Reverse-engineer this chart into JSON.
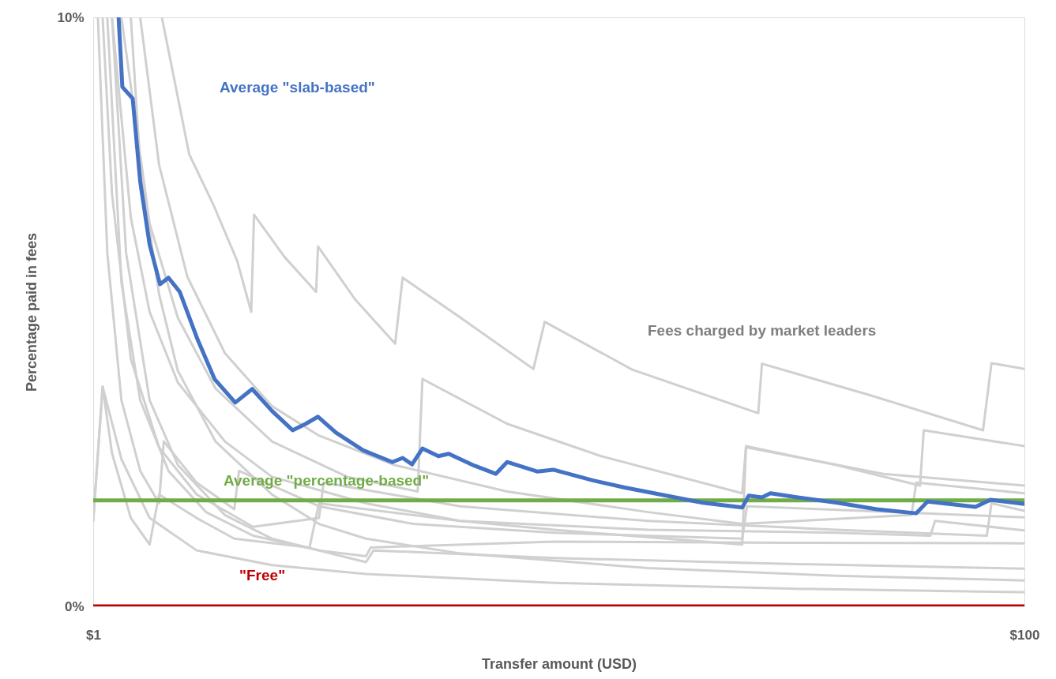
{
  "chart_data": {
    "type": "line",
    "xlabel": "Transfer amount (USD)",
    "ylabel": "Percentage paid in fees",
    "xlim": [
      1,
      100
    ],
    "xticks": [
      {
        "value": 1,
        "label": "$1"
      },
      {
        "value": 100,
        "label": "$100"
      }
    ],
    "ylim": [
      0,
      10
    ],
    "yticks": [
      {
        "value": 0,
        "label": "0%"
      },
      {
        "value": 10,
        "label": "10%"
      }
    ],
    "grid": false,
    "legend": false,
    "marker": "none",
    "line_style": "solid",
    "annotations": [
      "Fees charged by market leaders"
    ],
    "series": [
      {
        "color": "#d0d0d0",
        "x": [
          8.3,
          11.2,
          13.8,
          16.3,
          17.8,
          18.1,
          21.3,
          24.7,
          24.9,
          28.9,
          33.1,
          33.9,
          39.8,
          47.8,
          49.0,
          58.3,
          71.7,
          72.1,
          83.5,
          95.6,
          96.5,
          100
        ],
        "values": [
          10,
          7.68,
          6.81,
          5.87,
          5.0,
          6.65,
          5.94,
          5.34,
          6.11,
          5.2,
          4.46,
          5.58,
          4.93,
          4.03,
          4.83,
          4.02,
          3.28,
          4.12,
          3.59,
          2.99,
          4.13,
          4.03
        ]
      },
      {
        "color": "#d0d0d0",
        "x": [
          4,
          7,
          10,
          14,
          20,
          28,
          35.5,
          36,
          45,
          55,
          70,
          70.4,
          80,
          88.9,
          89.3,
          100
        ],
        "values": [
          10,
          6.5,
          4.9,
          3.7,
          2.8,
          2.2,
          1.95,
          3.86,
          3.1,
          2.55,
          1.92,
          2.72,
          2.4,
          2.05,
          2.99,
          2.72
        ]
      },
      {
        "color": "#d0d0d0",
        "x": [
          3,
          5,
          7,
          10,
          15,
          20,
          30,
          40,
          50,
          70,
          70.4,
          85,
          100
        ],
        "values": [
          10,
          6.6,
          5.0,
          3.8,
          2.8,
          2.2,
          1.75,
          1.45,
          1.3,
          1.05,
          2.7,
          2.25,
          2.05
        ]
      },
      {
        "color": "#d0d0d0",
        "x": [
          6,
          8,
          11,
          15,
          20,
          25,
          33,
          45,
          60,
          70,
          88,
          88.5,
          100
        ],
        "values": [
          10,
          7.5,
          5.6,
          4.3,
          3.4,
          2.9,
          2.4,
          1.95,
          1.6,
          1.4,
          1.55,
          2.1,
          1.92
        ]
      },
      {
        "color": "#d0d0d0",
        "x": [
          2,
          3,
          5,
          8,
          12,
          18,
          25,
          25.5,
          40,
          60,
          80,
          96,
          96.5,
          100
        ],
        "values": [
          10,
          7,
          4.2,
          2.7,
          1.9,
          1.35,
          1.5,
          2.1,
          1.7,
          1.45,
          1.3,
          1.2,
          1.75,
          1.62
        ]
      },
      {
        "color": "#d0d0d0",
        "x": [
          1.5,
          2.5,
          4,
          6,
          8,
          8.5,
          12,
          16,
          16.5,
          25,
          35,
          50,
          70,
          70.5,
          100
        ],
        "values": [
          10,
          6,
          3.5,
          2.3,
          1.75,
          2.8,
          2.1,
          1.65,
          2.3,
          1.7,
          1.4,
          1.25,
          1.15,
          1.7,
          1.51
        ]
      },
      {
        "color": "#d0d0d0",
        "x": [
          1,
          2,
          3,
          5,
          7,
          8,
          12,
          16,
          24,
          25,
          40,
          60,
          80,
          90,
          90.5,
          100
        ],
        "values": [
          1.45,
          3.73,
          2.6,
          1.5,
          1.05,
          1.9,
          1.5,
          1.15,
          1.0,
          1.75,
          1.45,
          1.3,
          1.25,
          1.2,
          1.45,
          1.29
        ]
      },
      {
        "color": "#d0d0d0",
        "x": [
          2.5,
          4,
          6,
          9,
          13,
          18,
          25,
          30,
          30.5,
          50,
          75,
          100
        ],
        "values": [
          10,
          5.5,
          3.5,
          2.3,
          1.6,
          1.2,
          0.95,
          0.85,
          1.0,
          1.1,
          1.08,
          1.07
        ]
      },
      {
        "color": "#d0d0d0",
        "x": [
          3,
          4.5,
          7,
          10,
          15,
          20,
          30,
          30.8,
          50,
          75,
          100
        ],
        "values": [
          10,
          6,
          3.5,
          2.4,
          1.55,
          1.15,
          0.75,
          0.95,
          0.82,
          0.72,
          0.64
        ]
      },
      {
        "color": "#d0d0d0",
        "x": [
          5,
          6,
          8,
          10,
          14,
          20,
          25,
          30,
          40,
          60,
          80,
          100
        ],
        "values": [
          10,
          7.5,
          5.3,
          4.0,
          2.8,
          1.9,
          1.4,
          1.15,
          0.9,
          0.65,
          0.52,
          0.44
        ]
      },
      {
        "color": "#d0d0d0",
        "x": [
          1,
          2,
          4,
          7,
          12,
          20,
          30,
          50,
          75,
          100
        ],
        "values": [
          1.45,
          3.73,
          2.5,
          1.5,
          0.95,
          0.7,
          0.55,
          0.4,
          0.3,
          0.24
        ]
      },
      {
        "name": "\"Free\"",
        "color": "#c00000",
        "x": [
          1,
          100
        ],
        "values": [
          0,
          0
        ]
      },
      {
        "name": "Average \"percentage-based\"",
        "color": "#70ad47",
        "x": [
          1,
          100
        ],
        "values": [
          1.8,
          1.8
        ]
      },
      {
        "name": "Average \"slab-based\"",
        "color": "#4472c4",
        "x": [
          3.7,
          4.1,
          5.2,
          6.0,
          7.0,
          8.1,
          9.0,
          10.2,
          12.1,
          13.9,
          16.1,
          17.9,
          20.0,
          22.2,
          23.6,
          24.9,
          26.8,
          29.7,
          32.8,
          33.9,
          34.9,
          36.0,
          37.7,
          38.8,
          41.5,
          43.8,
          45.0,
          48.2,
          49.9,
          54.1,
          57.4,
          61.6,
          65.8,
          70.0,
          70.7,
          72.1,
          73.0,
          75.9,
          80.1,
          84.3,
          88.5,
          89.7,
          94.8,
          96.4,
          100
        ],
        "values": [
          10,
          8.82,
          8.62,
          7.21,
          6.14,
          5.47,
          5.58,
          5.34,
          4.53,
          3.86,
          3.46,
          3.69,
          3.32,
          2.99,
          3.1,
          3.22,
          2.95,
          2.65,
          2.45,
          2.52,
          2.41,
          2.68,
          2.55,
          2.59,
          2.39,
          2.25,
          2.45,
          2.29,
          2.32,
          2.14,
          2.02,
          1.89,
          1.76,
          1.68,
          1.88,
          1.85,
          1.92,
          1.85,
          1.76,
          1.65,
          1.58,
          1.78,
          1.69,
          1.81,
          1.74
        ]
      }
    ]
  }
}
